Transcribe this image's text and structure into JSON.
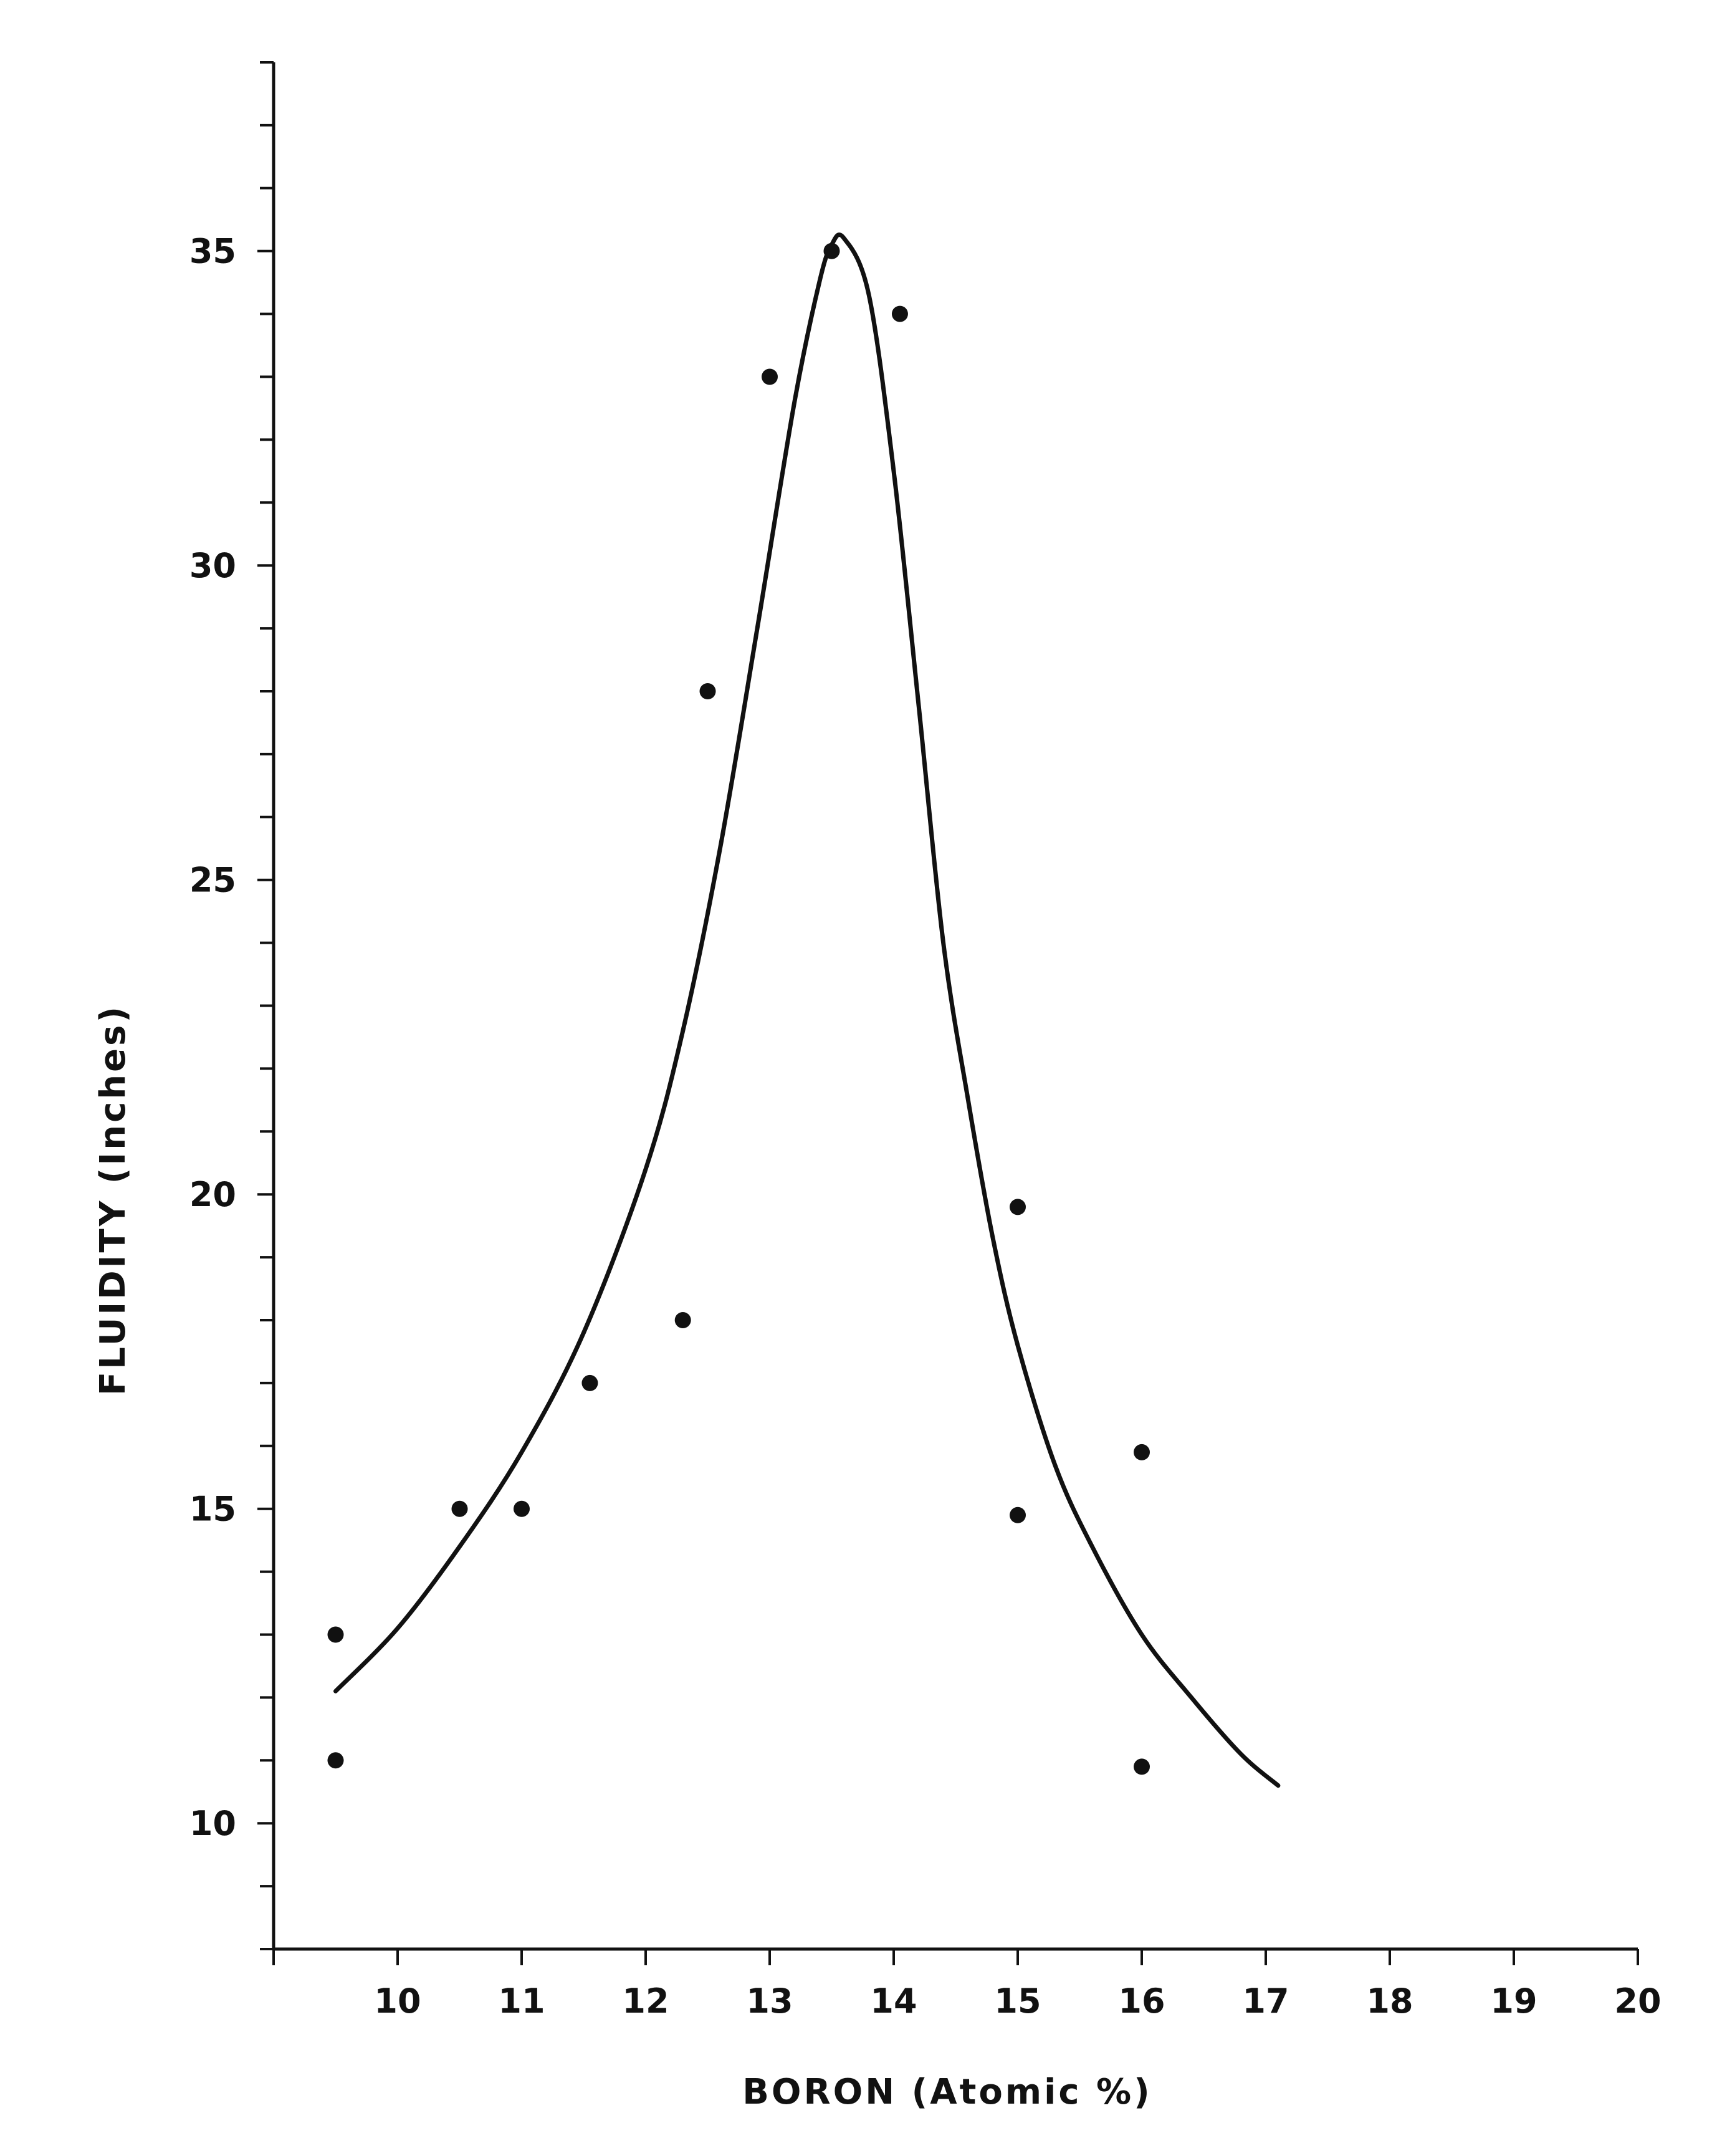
{
  "chart_data": {
    "type": "scatter",
    "xlabel": "BORON (Atomic %)",
    "ylabel": "FLUIDITY (Inches)",
    "xlim": [
      9,
      20
    ],
    "ylim": [
      8,
      38
    ],
    "x_ticks": [
      10,
      11,
      12,
      13,
      14,
      15,
      16,
      17,
      18,
      19,
      20
    ],
    "y_ticks": [
      10,
      15,
      20,
      25,
      30,
      35
    ],
    "y_minor_step": 1,
    "x_minor_step": 1,
    "grid": false,
    "series": [
      {
        "kind": "points",
        "x": [
          9.5,
          9.5,
          10.5,
          11.0,
          11.55,
          12.3,
          12.5,
          13.0,
          13.5,
          14.05,
          15.0,
          15.0,
          16.0,
          16.0
        ],
        "y": [
          13,
          11,
          15,
          15,
          17,
          18,
          28,
          33,
          35,
          34,
          19.8,
          14.9,
          15.9,
          10.9
        ]
      },
      {
        "kind": "curve",
        "x": [
          9.5,
          10.0,
          10.5,
          11.0,
          11.5,
          12.0,
          12.3,
          12.6,
          12.9,
          13.2,
          13.4,
          13.5,
          13.6,
          13.8,
          14.0,
          14.2,
          14.4,
          14.6,
          14.8,
          15.0,
          15.3,
          15.6,
          16.0,
          16.4,
          16.8,
          17.1
        ],
        "y": [
          12.1,
          13.1,
          14.4,
          15.9,
          17.8,
          20.4,
          22.6,
          25.5,
          29.0,
          32.6,
          34.5,
          35.1,
          35.2,
          34.3,
          31.5,
          27.8,
          24.0,
          21.5,
          19.3,
          17.6,
          15.7,
          14.4,
          13.0,
          12.0,
          11.1,
          10.6
        ]
      }
    ]
  },
  "colors": {
    "ink": "#111111",
    "background": "#ffffff"
  }
}
